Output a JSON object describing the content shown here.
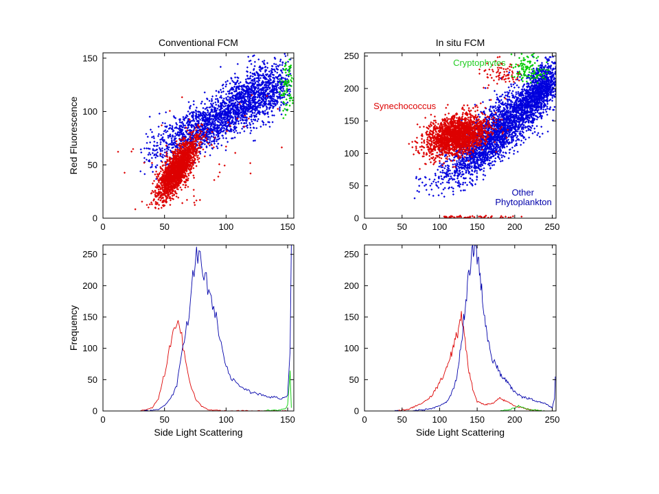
{
  "chart_data": [
    {
      "type": "scatter",
      "title": "Conventional FCM",
      "xlabel": "",
      "ylabel": "Red Fluorescence",
      "xlim": [
        0,
        155
      ],
      "ylim": [
        0,
        155
      ],
      "xticks": [
        0,
        50,
        100,
        150
      ],
      "yticks": [
        0,
        50,
        100,
        150
      ],
      "xtick_labels": [
        "0",
        "50",
        "100",
        "150"
      ],
      "ytick_labels": [
        "0",
        "50",
        "100",
        "150"
      ],
      "grid": false,
      "series": [
        {
          "color": "#0000dd",
          "clouds": [
            {
              "n": 1700,
              "cx": 92,
              "cy": 92,
              "sx": 28,
              "sy": 20,
              "rho": 0.82,
              "xmin": 30,
              "xmax": 153,
              "ymin": 5,
              "ymax": 155
            },
            {
              "n": 650,
              "cx": 127,
              "cy": 118,
              "sx": 14,
              "sy": 14,
              "rho": 0.3,
              "xmin": 75,
              "xmax": 153,
              "ymin": 70,
              "ymax": 155
            }
          ]
        },
        {
          "color": "#dd0000",
          "clouds": [
            {
              "n": 1800,
              "cx": 60,
              "cy": 45,
              "sx": 8,
              "sy": 14,
              "rho": 0.75,
              "xmin": 30,
              "xmax": 110,
              "ymin": 8,
              "ymax": 110
            },
            {
              "n": 60,
              "cx": 80,
              "cy": 60,
              "sx": 30,
              "sy": 28,
              "rho": 0.4,
              "xmin": 2,
              "xmax": 150,
              "ymin": 3,
              "ymax": 150
            }
          ]
        },
        {
          "color": "#00cc00",
          "clouds": [
            {
              "n": 80,
              "cx": 150,
              "cy": 125,
              "sx": 2.5,
              "sy": 16,
              "rho": 0,
              "xmin": 140,
              "xmax": 155,
              "ymin": 90,
              "ymax": 155
            }
          ]
        }
      ]
    },
    {
      "type": "scatter",
      "title": "In situ FCM",
      "xlabel": "",
      "ylabel": "",
      "xlim": [
        0,
        255
      ],
      "ylim": [
        0,
        255
      ],
      "xticks": [
        0,
        50,
        100,
        150,
        200,
        250
      ],
      "yticks": [
        0,
        50,
        100,
        150,
        200,
        250
      ],
      "xtick_labels": [
        "0",
        "50",
        "100",
        "150",
        "200",
        "250"
      ],
      "ytick_labels": [
        "0",
        "50",
        "100",
        "150",
        "200",
        "250"
      ],
      "grid": false,
      "annotations": [
        {
          "text": "Cryptophytes",
          "color": "#22cc22",
          "x": 118,
          "y": 235
        },
        {
          "text": "Synechococcus",
          "color": "#dd0000",
          "x": 12,
          "y": 168
        },
        {
          "text": "Other",
          "color": "#0000aa",
          "x": 196,
          "y": 35
        },
        {
          "text": "Phytoplankton",
          "color": "#0000aa",
          "x": 174,
          "y": 20
        }
      ],
      "series": [
        {
          "color": "#0000dd",
          "clouds": [
            {
              "n": 2600,
              "cx": 178,
              "cy": 135,
              "sx": 38,
              "sy": 42,
              "rho": 0.85,
              "xmin": 60,
              "xmax": 255,
              "ymin": 30,
              "ymax": 250
            },
            {
              "n": 700,
              "cx": 235,
              "cy": 200,
              "sx": 12,
              "sy": 20,
              "rho": 0.5,
              "xmin": 200,
              "xmax": 255,
              "ymin": 150,
              "ymax": 250
            }
          ]
        },
        {
          "color": "#dd0000",
          "clouds": [
            {
              "n": 2100,
              "cx": 122,
              "cy": 128,
              "sx": 20,
              "sy": 15,
              "rho": 0.35,
              "xmin": 40,
              "xmax": 220,
              "ymin": 50,
              "ymax": 200
            },
            {
              "n": 80,
              "cx": 185,
              "cy": 222,
              "sx": 12,
              "sy": 10,
              "rho": 0,
              "xmin": 150,
              "xmax": 215,
              "ymin": 195,
              "ymax": 250
            },
            {
              "n": 50,
              "cx": 140,
              "cy": 2,
              "sx": 35,
              "sy": 1,
              "rho": 0,
              "xmin": 80,
              "xmax": 215,
              "ymin": 0,
              "ymax": 4
            }
          ]
        },
        {
          "color": "#00cc00",
          "clouds": [
            {
              "n": 110,
              "cx": 218,
              "cy": 230,
              "sx": 12,
              "sy": 12,
              "rho": 0,
              "xmin": 195,
              "xmax": 250,
              "ymin": 205,
              "ymax": 255
            }
          ]
        }
      ]
    },
    {
      "type": "line",
      "title": "",
      "xlabel": "Side Light Scattering",
      "ylabel": "Frequency",
      "xlim": [
        0,
        155
      ],
      "ylim": [
        0,
        265
      ],
      "xticks": [
        0,
        50,
        100,
        150
      ],
      "yticks": [
        0,
        50,
        100,
        150,
        200,
        250
      ],
      "xtick_labels": [
        "0",
        "50",
        "100",
        "150"
      ],
      "ytick_labels": [
        "0",
        "50",
        "100",
        "150",
        "200",
        "250"
      ],
      "grid": false,
      "series": [
        {
          "color": "#dd0000",
          "x": [
            30,
            40,
            45,
            50,
            55,
            58,
            61,
            63,
            66,
            70,
            75,
            80,
            85,
            90,
            100,
            110,
            120,
            130,
            140,
            150
          ],
          "y": [
            0,
            5,
            20,
            60,
            110,
            125,
            150,
            130,
            90,
            50,
            20,
            8,
            3,
            1,
            0,
            0,
            0,
            0,
            0,
            0
          ]
        },
        {
          "color": "#0000aa",
          "x": [
            30,
            40,
            45,
            50,
            55,
            60,
            63,
            66,
            70,
            73,
            76,
            79,
            82,
            85,
            88,
            92,
            96,
            100,
            105,
            110,
            115,
            120,
            125,
            130,
            135,
            140,
            145,
            150,
            152,
            153
          ],
          "y": [
            0,
            1,
            3,
            8,
            20,
            40,
            80,
            110,
            160,
            210,
            250,
            245,
            220,
            200,
            175,
            150,
            110,
            70,
            50,
            40,
            35,
            30,
            28,
            25,
            22,
            22,
            20,
            25,
            100,
            265
          ]
        },
        {
          "color": "#00cc00",
          "x": [
            130,
            135,
            140,
            145,
            148,
            150,
            152,
            153
          ],
          "y": [
            0,
            1,
            1,
            2,
            3,
            10,
            60,
            5
          ]
        }
      ]
    },
    {
      "type": "line",
      "title": "",
      "xlabel": "Side Light Scattering",
      "ylabel": "",
      "xlim": [
        0,
        255
      ],
      "ylim": [
        0,
        265
      ],
      "xticks": [
        0,
        50,
        100,
        150,
        200,
        250
      ],
      "yticks": [
        0,
        50,
        100,
        150,
        200,
        250
      ],
      "xtick_labels": [
        "0",
        "50",
        "100",
        "150",
        "200",
        "250"
      ],
      "ytick_labels": [
        "0",
        "50",
        "100",
        "150",
        "200",
        "250"
      ],
      "grid": false,
      "series": [
        {
          "color": "#dd0000",
          "x": [
            40,
            60,
            80,
            90,
            100,
            110,
            115,
            120,
            125,
            128,
            132,
            138,
            145,
            150,
            160,
            170,
            180,
            190,
            200,
            210,
            220,
            230,
            240
          ],
          "y": [
            0,
            3,
            15,
            25,
            45,
            70,
            90,
            110,
            130,
            155,
            130,
            70,
            30,
            15,
            10,
            12,
            20,
            15,
            8,
            5,
            2,
            1,
            0
          ]
        },
        {
          "color": "#0000aa",
          "x": [
            40,
            60,
            80,
            90,
            100,
            110,
            115,
            120,
            125,
            130,
            135,
            140,
            145,
            148,
            152,
            156,
            160,
            165,
            170,
            180,
            190,
            200,
            210,
            220,
            230,
            240,
            250,
            253,
            254
          ],
          "y": [
            0,
            0,
            2,
            4,
            8,
            15,
            25,
            40,
            70,
            120,
            180,
            230,
            255,
            260,
            230,
            190,
            150,
            110,
            85,
            60,
            45,
            30,
            22,
            20,
            15,
            12,
            5,
            20,
            55
          ]
        },
        {
          "color": "#00cc00",
          "x": [
            180,
            190,
            195,
            200,
            205,
            210,
            215,
            220,
            230,
            240
          ],
          "y": [
            0,
            2,
            3,
            5,
            8,
            6,
            4,
            2,
            1,
            0
          ]
        }
      ]
    }
  ]
}
